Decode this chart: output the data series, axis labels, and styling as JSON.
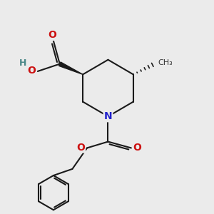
{
  "bg_color": "#ebebeb",
  "bond_color": "#1a1a1a",
  "bond_width": 1.5,
  "N_color": "#2222cc",
  "O_color": "#cc1111",
  "H_color": "#4a8888",
  "figsize": [
    3.0,
    3.0
  ],
  "dpi": 100,
  "xlim": [
    0,
    10
  ],
  "ylim": [
    0,
    10
  ]
}
